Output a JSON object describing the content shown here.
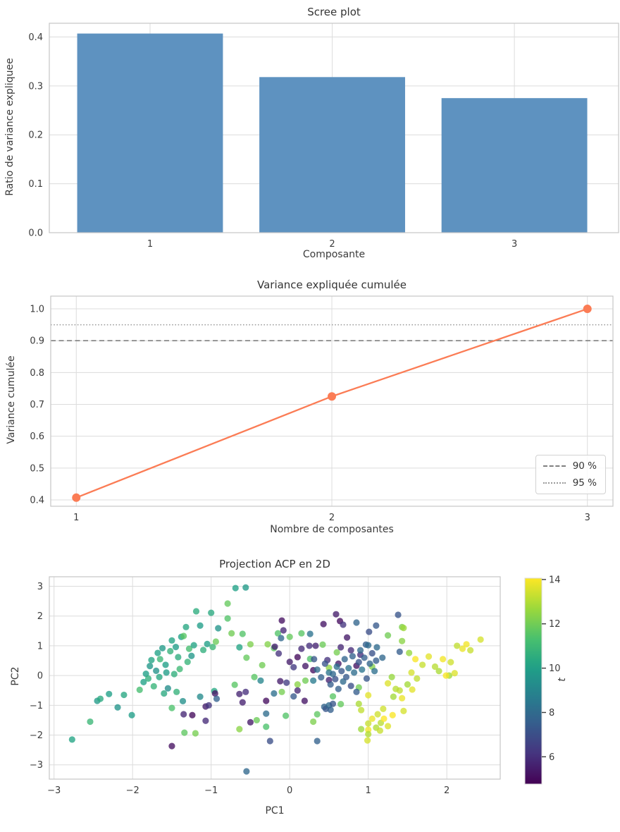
{
  "figure": {
    "background": "#ffffff",
    "text_color": "#3b3b3b",
    "grid_color": "#dcdcdc",
    "spine_color": "#c6c6c6"
  },
  "chart_data": [
    {
      "type": "bar",
      "title": "Scree plot",
      "xlabel": "Composante",
      "ylabel": "Ratio de variance expliquee",
      "categories": [
        "1",
        "2",
        "3"
      ],
      "values": [
        0.407,
        0.318,
        0.275
      ],
      "bar_color": "#5e92c0",
      "bar_width": 0.8,
      "xlim": [
        0.447,
        3.572
      ],
      "ylim": [
        0,
        0.428
      ],
      "xticks": [
        1,
        2,
        3
      ],
      "yticks": [
        0.0,
        0.1,
        0.2,
        0.3,
        0.4
      ],
      "grid": "on"
    },
    {
      "type": "line",
      "title": "Variance expliquée cumulée",
      "xlabel": "Nombre de composantes",
      "ylabel": "Variance cumulée",
      "x": [
        1,
        2,
        3
      ],
      "y": [
        0.407,
        0.725,
        1.0
      ],
      "line_color": "#fb7c55",
      "marker": "o",
      "hlines": [
        {
          "y": 0.9,
          "style": "dashed",
          "color": "#7f7f7f",
          "label": "90 %"
        },
        {
          "y": 0.95,
          "style": "dotted",
          "color": "#9a9a9a",
          "label": "95 %"
        }
      ],
      "legend_position": "lower right",
      "xlim": [
        0.9,
        3.1
      ],
      "ylim": [
        0.38,
        1.04
      ],
      "xticks": [
        1,
        2,
        3
      ],
      "yticks": [
        0.4,
        0.5,
        0.6,
        0.7,
        0.8,
        0.9,
        1.0
      ],
      "grid": "on"
    },
    {
      "type": "scatter",
      "title": "Projection ACP en 2D",
      "xlabel": "PC1",
      "ylabel": "PC2",
      "xlim": [
        -3.06,
        2.68
      ],
      "ylim": [
        -3.48,
        3.32
      ],
      "xticks": [
        -3,
        -2,
        -1,
        0,
        1,
        2
      ],
      "yticks": [
        -3,
        -2,
        -1,
        0,
        1,
        2,
        3
      ],
      "grid": "on",
      "colorbar": {
        "label": "t",
        "colormap": "viridis",
        "vmin": 4.77,
        "vmax": 14.06,
        "ticks": [
          6,
          8,
          10,
          12,
          14
        ]
      },
      "marker_alpha": 0.78,
      "points": [
        [
          -2.77,
          -2.15,
          10.2
        ],
        [
          -2.45,
          -0.85,
          9.8
        ],
        [
          -2.41,
          -0.78,
          10.4
        ],
        [
          -2.54,
          -1.55,
          10.9
        ],
        [
          -2.19,
          -1.07,
          9.6
        ],
        [
          -2.11,
          -0.65,
          10.3
        ],
        [
          -2.3,
          -0.62,
          10.0
        ],
        [
          -2.01,
          -1.33,
          9.9
        ],
        [
          -1.91,
          -0.48,
          11.2
        ],
        [
          -1.86,
          -0.22,
          10.1
        ],
        [
          -1.83,
          0.06,
          10.0
        ],
        [
          -1.8,
          -0.1,
          10.6
        ],
        [
          -1.78,
          0.32,
          9.7
        ],
        [
          -1.76,
          0.52,
          10.2
        ],
        [
          -1.73,
          -0.36,
          10.8
        ],
        [
          -1.7,
          0.16,
          9.5
        ],
        [
          -1.68,
          0.76,
          10.1
        ],
        [
          -1.65,
          0.55,
          10.9
        ],
        [
          -1.62,
          0.92,
          9.8
        ],
        [
          -1.6,
          -0.6,
          10.4
        ],
        [
          -1.58,
          0.36,
          10.0
        ],
        [
          -1.55,
          -0.43,
          9.3
        ],
        [
          -1.52,
          0.82,
          10.7
        ],
        [
          -1.5,
          1.18,
          10.2
        ],
        [
          -1.5,
          -1.09,
          11.4
        ],
        [
          -1.45,
          0.96,
          9.9
        ],
        [
          -1.42,
          0.62,
          10.5
        ],
        [
          -1.4,
          0.22,
          11.0
        ],
        [
          -1.38,
          1.3,
          10.1
        ],
        [
          -1.36,
          -0.86,
          9.4
        ],
        [
          -1.32,
          1.63,
          10.3
        ],
        [
          -1.3,
          0.46,
          10.8
        ],
        [
          -1.28,
          0.9,
          11.2
        ],
        [
          -1.25,
          0.66,
          9.7
        ],
        [
          -1.22,
          1.02,
          10.2
        ],
        [
          -1.19,
          2.16,
          10.5
        ],
        [
          -1.14,
          1.68,
          9.9
        ],
        [
          -1.14,
          -0.71,
          9.2
        ],
        [
          -1.1,
          0.86,
          10.6
        ],
        [
          -1.05,
          1.06,
          10.0
        ],
        [
          -1.0,
          2.11,
          10.4
        ],
        [
          -0.98,
          0.96,
          10.9
        ],
        [
          -0.96,
          -0.52,
          10.3
        ],
        [
          -0.91,
          1.59,
          9.6
        ],
        [
          -0.69,
          2.94,
          10.1
        ],
        [
          -0.56,
          2.96,
          9.8
        ],
        [
          -0.64,
          0.95,
          10.2
        ],
        [
          -0.37,
          -0.17,
          9.0
        ],
        [
          -1.47,
          0.05,
          10.6
        ],
        [
          -1.57,
          0.1,
          9.9
        ],
        [
          -1.66,
          -0.05,
          10.3
        ],
        [
          -1.44,
          -0.55,
          10.7
        ],
        [
          -0.79,
          2.42,
          11.8
        ],
        [
          -0.79,
          1.92,
          11.5
        ],
        [
          -0.74,
          1.42,
          12.0
        ],
        [
          -1.35,
          1.33,
          11.6
        ],
        [
          -0.94,
          1.14,
          11.9
        ],
        [
          -1.34,
          -1.92,
          11.7
        ],
        [
          -1.2,
          -1.94,
          12.1
        ],
        [
          -0.7,
          -0.31,
          11.6
        ],
        [
          -0.64,
          -1.8,
          12.4
        ],
        [
          -0.6,
          1.4,
          11.5
        ],
        [
          -0.55,
          0.6,
          11.8
        ],
        [
          -0.5,
          1.05,
          12.2
        ],
        [
          -0.45,
          -0.05,
          11.6
        ],
        [
          -0.42,
          -1.5,
          11.9
        ],
        [
          -0.35,
          0.35,
          12.0
        ],
        [
          -0.3,
          -1.72,
          11.4
        ],
        [
          -0.28,
          1.05,
          12.3
        ],
        [
          -0.2,
          0.92,
          11.7
        ],
        [
          -0.15,
          1.42,
          11.5
        ],
        [
          -0.1,
          -0.55,
          12.1
        ],
        [
          0.0,
          1.3,
          11.8
        ],
        [
          0.1,
          -0.3,
          12.4
        ],
        [
          0.15,
          1.42,
          11.6
        ],
        [
          0.2,
          -0.17,
          12.0
        ],
        [
          0.26,
          0.56,
          11.5
        ],
        [
          0.3,
          -1.55,
          12.2
        ],
        [
          0.42,
          1.04,
          11.9
        ],
        [
          0.5,
          0.26,
          12.5
        ],
        [
          0.55,
          -0.7,
          11.6
        ],
        [
          0.6,
          0.78,
          12.1
        ],
        [
          0.65,
          -0.96,
          11.8
        ],
        [
          1.43,
          1.63,
          12.2
        ],
        [
          1.43,
          1.16,
          12.4
        ],
        [
          1.52,
          0.76,
          12.6
        ],
        [
          0.35,
          -1.3,
          11.7
        ],
        [
          -0.05,
          -1.35,
          11.5
        ],
        [
          0.88,
          -0.4,
          12.0
        ],
        [
          1.05,
          0.3,
          12.3
        ],
        [
          2.03,
          0.0,
          12.8
        ],
        [
          1.25,
          1.35,
          12.0
        ],
        [
          -1.5,
          -2.37,
          5.2
        ],
        [
          -1.35,
          -1.3,
          5.8
        ],
        [
          -1.24,
          -1.33,
          5.0
        ],
        [
          -1.07,
          -1.04,
          5.5
        ],
        [
          -1.03,
          -1.0,
          6.2
        ],
        [
          -1.07,
          -1.52,
          5.9
        ],
        [
          -0.95,
          -0.6,
          5.3
        ],
        [
          -0.64,
          -0.62,
          5.7
        ],
        [
          -0.56,
          -0.55,
          6.0
        ],
        [
          -0.5,
          -1.57,
          5.4
        ],
        [
          -0.3,
          -0.85,
          5.1
        ],
        [
          -0.19,
          0.97,
          5.6
        ],
        [
          -0.14,
          0.74,
          6.1
        ],
        [
          -0.1,
          1.85,
          5.2
        ],
        [
          -0.08,
          1.52,
          5.8
        ],
        [
          0.0,
          0.46,
          5.5
        ],
        [
          0.05,
          0.28,
          6.3
        ],
        [
          0.1,
          0.62,
          5.0
        ],
        [
          0.15,
          0.9,
          5.9
        ],
        [
          0.2,
          0.32,
          5.4
        ],
        [
          0.25,
          1.0,
          6.0
        ],
        [
          0.3,
          0.18,
          5.2
        ],
        [
          0.33,
          1.0,
          5.7
        ],
        [
          0.43,
          1.73,
          5.3
        ],
        [
          0.48,
          0.52,
          6.1
        ],
        [
          0.5,
          -0.15,
          5.6
        ],
        [
          0.59,
          2.06,
          5.5
        ],
        [
          0.64,
          1.83,
          5.1
        ],
        [
          0.65,
          0.95,
          5.8
        ],
        [
          0.68,
          1.71,
          6.2
        ],
        [
          0.73,
          1.28,
          5.4
        ],
        [
          0.78,
          0.85,
          5.9
        ],
        [
          0.85,
          0.33,
          5.2
        ],
        [
          0.9,
          0.7,
          6.0
        ],
        [
          -0.12,
          -0.19,
          5.5
        ],
        [
          -0.04,
          -0.24,
          6.4
        ],
        [
          0.19,
          -0.85,
          5.3
        ],
        [
          0.1,
          -0.5,
          5.8
        ],
        [
          -0.6,
          -0.9,
          5.6
        ],
        [
          0.62,
          0.4,
          5.4
        ],
        [
          1.38,
          2.04,
          7.2
        ],
        [
          0.85,
          1.78,
          7.8
        ],
        [
          1.1,
          1.68,
          7.4
        ],
        [
          0.26,
          1.4,
          8.3
        ],
        [
          1.01,
          1.47,
          7.0
        ],
        [
          0.97,
          1.04,
          7.6
        ],
        [
          1.11,
          0.95,
          8.0
        ],
        [
          -0.11,
          1.26,
          7.9
        ],
        [
          0.31,
          0.55,
          7.3
        ],
        [
          0.35,
          0.2,
          8.1
        ],
        [
          0.4,
          -0.06,
          7.7
        ],
        [
          0.45,
          0.4,
          7.2
        ],
        [
          0.5,
          0.1,
          8.4
        ],
        [
          0.52,
          -0.3,
          7.5
        ],
        [
          0.55,
          0.05,
          7.9
        ],
        [
          0.58,
          -0.12,
          7.1
        ],
        [
          0.6,
          0.3,
          8.2
        ],
        [
          0.62,
          -0.45,
          7.6
        ],
        [
          0.66,
          0.15,
          7.3
        ],
        [
          0.68,
          -0.2,
          8.0
        ],
        [
          0.7,
          0.55,
          7.8
        ],
        [
          0.72,
          -0.05,
          7.4
        ],
        [
          0.75,
          0.25,
          8.3
        ],
        [
          0.78,
          -0.35,
          7.0
        ],
        [
          0.8,
          0.65,
          7.7
        ],
        [
          0.82,
          0.1,
          8.1
        ],
        [
          0.85,
          -0.55,
          7.5
        ],
        [
          0.88,
          0.45,
          7.2
        ],
        [
          0.9,
          0.85,
          7.9
        ],
        [
          0.92,
          0.2,
          8.4
        ],
        [
          0.95,
          0.6,
          7.6
        ],
        [
          0.98,
          -0.1,
          7.3
        ],
        [
          1.0,
          1.02,
          8.0
        ],
        [
          1.02,
          0.4,
          7.8
        ],
        [
          1.05,
          0.75,
          7.1
        ],
        [
          1.08,
          0.15,
          8.2
        ],
        [
          1.1,
          0.5,
          7.5
        ],
        [
          0.44,
          -1.05,
          7.8
        ],
        [
          0.46,
          -1.12,
          7.3
        ],
        [
          0.5,
          -1.0,
          8.0
        ],
        [
          0.52,
          -1.15,
          7.6
        ],
        [
          0.55,
          -0.95,
          7.2
        ],
        [
          0.35,
          -2.2,
          7.7
        ],
        [
          -0.55,
          -3.22,
          7.9
        ],
        [
          -0.3,
          -1.28,
          8.1
        ],
        [
          -0.93,
          -0.78,
          7.7
        ],
        [
          0.3,
          -0.17,
          8.6
        ],
        [
          -0.25,
          -2.2,
          7.0
        ],
        [
          1.4,
          0.8,
          7.5
        ],
        [
          1.18,
          0.6,
          7.9
        ],
        [
          0.05,
          -0.7,
          7.4
        ],
        [
          -0.2,
          -0.6,
          8.2
        ],
        [
          2.43,
          1.21,
          13.5
        ],
        [
          2.13,
          1.0,
          13.2
        ],
        [
          2.2,
          0.9,
          13.8
        ],
        [
          2.05,
          0.45,
          13.4
        ],
        [
          1.95,
          0.55,
          13.9
        ],
        [
          1.85,
          0.3,
          13.1
        ],
        [
          2.1,
          0.08,
          13.6
        ],
        [
          1.99,
          0.0,
          14.0
        ],
        [
          1.69,
          0.36,
          13.3
        ],
        [
          1.77,
          0.64,
          13.7
        ],
        [
          1.45,
          -1.19,
          13.5
        ],
        [
          1.43,
          -0.76,
          13.8
        ],
        [
          1.4,
          -0.5,
          13.2
        ],
        [
          1.32,
          -0.71,
          12.8
        ],
        [
          1.25,
          -0.26,
          13.6
        ],
        [
          1.31,
          -1.33,
          14.0
        ],
        [
          1.19,
          -1.12,
          13.4
        ],
        [
          1.16,
          -1.59,
          13.1
        ],
        [
          1.0,
          -0.66,
          13.7
        ],
        [
          1.0,
          -1.61,
          13.3
        ],
        [
          1.0,
          -1.82,
          13.9
        ],
        [
          1.0,
          -1.97,
          13.0
        ],
        [
          0.99,
          -2.18,
          13.5
        ],
        [
          0.91,
          -1.16,
          13.2
        ],
        [
          0.91,
          -1.8,
          12.7
        ],
        [
          0.88,
          -0.95,
          12.9
        ],
        [
          1.05,
          -1.45,
          13.8
        ],
        [
          1.12,
          -1.3,
          13.4
        ],
        [
          1.2,
          -1.45,
          14.1
        ],
        [
          1.25,
          -1.7,
          13.6
        ],
        [
          1.1,
          -1.75,
          13.0
        ],
        [
          1.15,
          -1.85,
          13.3
        ],
        [
          1.56,
          -0.47,
          13.7
        ],
        [
          1.62,
          -0.1,
          13.2
        ],
        [
          1.5,
          -0.3,
          12.8
        ],
        [
          1.55,
          0.1,
          13.5
        ],
        [
          1.6,
          0.55,
          14.0
        ],
        [
          1.35,
          -0.45,
          13.1
        ],
        [
          1.3,
          -0.05,
          12.6
        ],
        [
          2.3,
          0.85,
          13.3
        ],
        [
          2.25,
          1.05,
          13.9
        ],
        [
          1.9,
          0.15,
          12.9
        ],
        [
          1.45,
          1.6,
          12.7
        ]
      ]
    }
  ]
}
